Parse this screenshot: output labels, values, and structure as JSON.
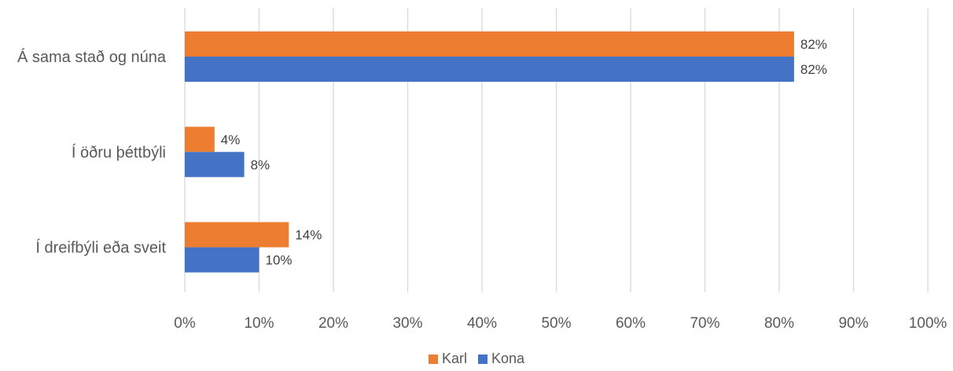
{
  "chart_data": {
    "type": "bar",
    "orientation": "horizontal",
    "categories": [
      "Á sama stað og núna",
      "Í öðru þéttbýli",
      "Í dreifbýli eða sveit"
    ],
    "series": [
      {
        "name": "Karl",
        "values": [
          82,
          4,
          14
        ],
        "labels": [
          "82%",
          "4%",
          "14%"
        ],
        "color": "#ED7D31"
      },
      {
        "name": "Kona",
        "values": [
          82,
          8,
          10
        ],
        "labels": [
          "82%",
          "8%",
          "10%"
        ],
        "color": "#4472C4"
      }
    ],
    "xlim": [
      0,
      100
    ],
    "x_ticks": [
      0,
      10,
      20,
      30,
      40,
      50,
      60,
      70,
      80,
      90,
      100
    ],
    "x_tick_labels": [
      "0%",
      "10%",
      "20%",
      "30%",
      "40%",
      "50%",
      "60%",
      "70%",
      "80%",
      "90%",
      "100%"
    ],
    "grid": "vertical",
    "legend_position": "bottom",
    "gridline_color": "#D9D9D9",
    "text_color": "#595959"
  }
}
